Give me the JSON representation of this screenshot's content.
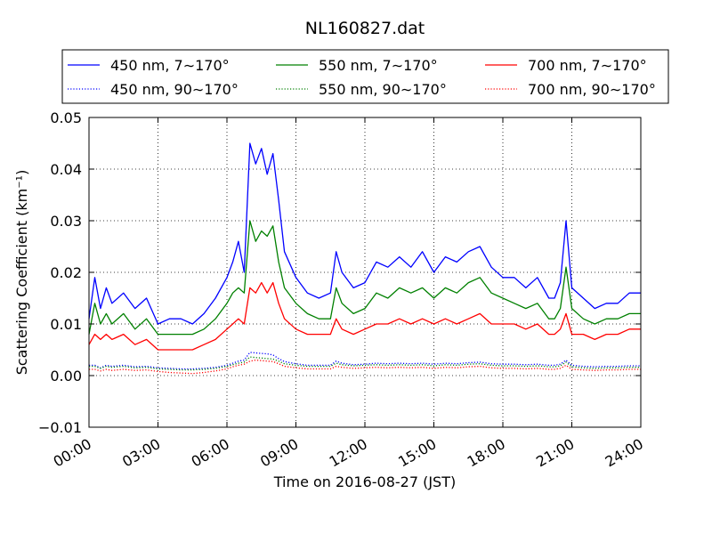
{
  "chart_data": {
    "type": "line",
    "title": "NL160827.dat",
    "xlabel": "Time on 2016-08-27 (JST)",
    "ylabel": "Scattering Coefficient (km⁻¹)",
    "xlim": [
      0,
      24
    ],
    "ylim": [
      -0.01,
      0.05
    ],
    "grid": true,
    "legend_position": "top",
    "x_ticks": [
      "00:00",
      "03:00",
      "06:00",
      "09:00",
      "12:00",
      "15:00",
      "18:00",
      "21:00",
      "24:00"
    ],
    "y_ticks": [
      "−0.01",
      "0.00",
      "0.01",
      "0.02",
      "0.03",
      "0.04",
      "0.05"
    ],
    "x_hours": [
      0,
      0.25,
      0.5,
      0.75,
      1,
      1.5,
      2,
      2.5,
      3,
      3.5,
      4,
      4.5,
      5,
      5.5,
      6,
      6.25,
      6.5,
      6.75,
      7,
      7.25,
      7.5,
      7.75,
      8,
      8.25,
      8.5,
      9,
      9.5,
      10,
      10.5,
      10.75,
      11,
      11.5,
      12,
      12.5,
      13,
      13.5,
      14,
      14.5,
      15,
      15.5,
      16,
      16.5,
      17,
      17.5,
      18,
      18.5,
      19,
      19.5,
      20,
      20.25,
      20.5,
      20.75,
      21,
      21.5,
      22,
      22.5,
      23,
      23.5,
      24
    ],
    "series": [
      {
        "name": "450 nm, 7∼170°",
        "color": "#0000ff",
        "style": "solid",
        "values": [
          0.011,
          0.019,
          0.013,
          0.017,
          0.014,
          0.016,
          0.013,
          0.015,
          0.01,
          0.011,
          0.011,
          0.01,
          0.012,
          0.015,
          0.019,
          0.022,
          0.026,
          0.02,
          0.045,
          0.041,
          0.044,
          0.039,
          0.043,
          0.034,
          0.024,
          0.019,
          0.016,
          0.015,
          0.016,
          0.024,
          0.02,
          0.017,
          0.018,
          0.022,
          0.021,
          0.023,
          0.021,
          0.024,
          0.02,
          0.023,
          0.022,
          0.024,
          0.025,
          0.021,
          0.019,
          0.019,
          0.017,
          0.019,
          0.015,
          0.015,
          0.018,
          0.03,
          0.017,
          0.015,
          0.013,
          0.014,
          0.014,
          0.016,
          0.016
        ]
      },
      {
        "name": "550 nm, 7∼170°",
        "color": "#008000",
        "style": "solid",
        "values": [
          0.008,
          0.014,
          0.01,
          0.012,
          0.01,
          0.012,
          0.009,
          0.011,
          0.008,
          0.008,
          0.008,
          0.008,
          0.009,
          0.011,
          0.014,
          0.016,
          0.017,
          0.016,
          0.03,
          0.026,
          0.028,
          0.027,
          0.029,
          0.022,
          0.017,
          0.014,
          0.012,
          0.011,
          0.011,
          0.017,
          0.014,
          0.012,
          0.013,
          0.016,
          0.015,
          0.017,
          0.016,
          0.017,
          0.015,
          0.017,
          0.016,
          0.018,
          0.019,
          0.016,
          0.015,
          0.014,
          0.013,
          0.014,
          0.011,
          0.011,
          0.013,
          0.021,
          0.013,
          0.011,
          0.01,
          0.011,
          0.011,
          0.012,
          0.012
        ]
      },
      {
        "name": "700 nm, 7∼170°",
        "color": "#ff0000",
        "style": "solid",
        "values": [
          0.006,
          0.008,
          0.007,
          0.008,
          0.007,
          0.008,
          0.006,
          0.007,
          0.005,
          0.005,
          0.005,
          0.005,
          0.006,
          0.007,
          0.009,
          0.01,
          0.011,
          0.01,
          0.017,
          0.016,
          0.018,
          0.016,
          0.018,
          0.014,
          0.011,
          0.009,
          0.008,
          0.008,
          0.008,
          0.011,
          0.009,
          0.008,
          0.009,
          0.01,
          0.01,
          0.011,
          0.01,
          0.011,
          0.01,
          0.011,
          0.01,
          0.011,
          0.012,
          0.01,
          0.01,
          0.01,
          0.009,
          0.01,
          0.008,
          0.008,
          0.009,
          0.012,
          0.008,
          0.008,
          0.007,
          0.008,
          0.008,
          0.009,
          0.009
        ]
      },
      {
        "name": "450 nm, 90∼170°",
        "color": "#0000ff",
        "style": "dotted",
        "values": [
          0.002,
          0.002,
          0.0015,
          0.002,
          0.0018,
          0.002,
          0.0017,
          0.0018,
          0.0015,
          0.0014,
          0.0013,
          0.0013,
          0.0014,
          0.0016,
          0.002,
          0.0024,
          0.0028,
          0.003,
          0.0045,
          0.0044,
          0.0043,
          0.0042,
          0.004,
          0.0033,
          0.0027,
          0.0023,
          0.002,
          0.002,
          0.002,
          0.0028,
          0.0024,
          0.0021,
          0.0022,
          0.0024,
          0.0023,
          0.0024,
          0.0023,
          0.0024,
          0.0022,
          0.0024,
          0.0023,
          0.0025,
          0.0026,
          0.0023,
          0.0022,
          0.0022,
          0.0021,
          0.0022,
          0.002,
          0.002,
          0.0022,
          0.003,
          0.002,
          0.0018,
          0.0017,
          0.0018,
          0.0018,
          0.0019,
          0.0019
        ]
      },
      {
        "name": "550 nm, 90∼170°",
        "color": "#008000",
        "style": "dotted",
        "values": [
          0.0018,
          0.0018,
          0.0014,
          0.0018,
          0.0016,
          0.0018,
          0.0015,
          0.0016,
          0.0013,
          0.0012,
          0.0011,
          0.0011,
          0.0012,
          0.0014,
          0.0018,
          0.0021,
          0.0024,
          0.0026,
          0.0036,
          0.0035,
          0.0034,
          0.0033,
          0.0032,
          0.0028,
          0.0023,
          0.002,
          0.0018,
          0.0018,
          0.0018,
          0.0024,
          0.0021,
          0.0019,
          0.002,
          0.0021,
          0.002,
          0.0021,
          0.002,
          0.0021,
          0.0019,
          0.0021,
          0.002,
          0.0022,
          0.0023,
          0.002,
          0.0019,
          0.0019,
          0.0018,
          0.0019,
          0.0017,
          0.0017,
          0.0019,
          0.0026,
          0.0017,
          0.0015,
          0.0014,
          0.0015,
          0.0015,
          0.0016,
          0.0016
        ]
      },
      {
        "name": "700 nm, 90∼170°",
        "color": "#ff0000",
        "style": "dotted",
        "values": [
          0.0012,
          0.0012,
          0.0009,
          0.0012,
          0.001,
          0.0012,
          0.001,
          0.0011,
          0.0008,
          0.0006,
          0.0005,
          0.0004,
          0.0006,
          0.0009,
          0.0013,
          0.0017,
          0.002,
          0.0022,
          0.0028,
          0.003,
          0.0029,
          0.0028,
          0.0027,
          0.0023,
          0.0018,
          0.0015,
          0.0013,
          0.0013,
          0.0013,
          0.0018,
          0.0016,
          0.0014,
          0.0015,
          0.0016,
          0.0015,
          0.0016,
          0.0015,
          0.0016,
          0.0014,
          0.0016,
          0.0015,
          0.0017,
          0.0018,
          0.0015,
          0.0014,
          0.0014,
          0.0013,
          0.0014,
          0.0012,
          0.0012,
          0.0014,
          0.002,
          0.0012,
          0.0011,
          0.001,
          0.0011,
          0.0011,
          0.0012,
          0.0012
        ]
      }
    ]
  }
}
